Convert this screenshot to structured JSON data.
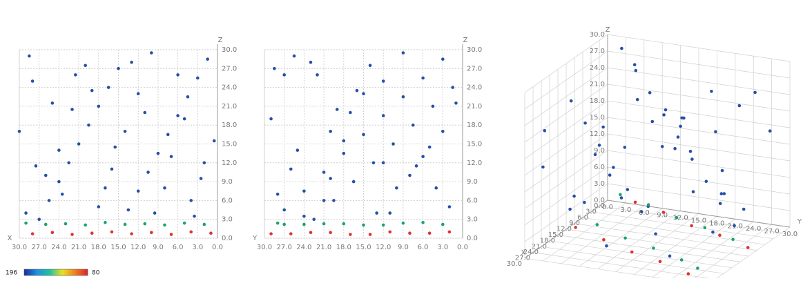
{
  "chart_data": {
    "type": "scatter3d",
    "axis_labels": {
      "x": "X",
      "y": "Y",
      "z": "Z"
    },
    "xlim": [
      0,
      30
    ],
    "ylim": [
      0,
      30
    ],
    "zlim": [
      0,
      30
    ],
    "xticks": [
      {
        "value": 0,
        "label": "0.0"
      },
      {
        "value": 3,
        "label": "3.0"
      },
      {
        "value": 6,
        "label": "6.0"
      },
      {
        "value": 9,
        "label": "9.0"
      },
      {
        "value": 12,
        "label": "12.0"
      },
      {
        "value": 15,
        "label": "15.0"
      },
      {
        "value": 18,
        "label": "18.0"
      },
      {
        "value": 21,
        "label": "21.0"
      },
      {
        "value": 24,
        "label": "24.0"
      },
      {
        "value": 27,
        "label": "27.0"
      },
      {
        "value": 30,
        "label": "30.0"
      }
    ],
    "yticks": [
      {
        "value": 0,
        "label": "0.0"
      },
      {
        "value": 3,
        "label": "3.0"
      },
      {
        "value": 6,
        "label": "6.0"
      },
      {
        "value": 9,
        "label": "9.0"
      },
      {
        "value": 12,
        "label": "12.0"
      },
      {
        "value": 15,
        "label": "15.0"
      },
      {
        "value": 18,
        "label": "18.0"
      },
      {
        "value": 21,
        "label": "21.0"
      },
      {
        "value": 24,
        "label": "24.0"
      },
      {
        "value": 27,
        "label": "27.0"
      },
      {
        "value": 30,
        "label": "30.0"
      }
    ],
    "zticks": [
      {
        "value": 0,
        "label": "0.0"
      },
      {
        "value": 3,
        "label": "3.0"
      },
      {
        "value": 6,
        "label": "6.0"
      },
      {
        "value": 9,
        "label": "9.0"
      },
      {
        "value": 12,
        "label": "12.0"
      },
      {
        "value": 15,
        "label": "15.0"
      },
      {
        "value": 18,
        "label": "18.0"
      },
      {
        "value": 21,
        "label": "21.0"
      },
      {
        "value": 24,
        "label": "24.0"
      },
      {
        "value": 27,
        "label": "27.0"
      },
      {
        "value": 30,
        "label": "30.0"
      }
    ],
    "grid": true,
    "series": [
      {
        "color": "#2450a8",
        "x": [
          1.5,
          3,
          4.5,
          6,
          7.5,
          9,
          10.5,
          12,
          13.5,
          15,
          16.5,
          18,
          19.5,
          21,
          22.5,
          24,
          25.5,
          27,
          28.5,
          30,
          2,
          4,
          6,
          8,
          10,
          12,
          14,
          16,
          18,
          20,
          22,
          24,
          26,
          28,
          0.5,
          3.5,
          5,
          7,
          9.5,
          11,
          13,
          15.5,
          17,
          19,
          21.5,
          23.5,
          25,
          27.5,
          29,
          2.5
        ],
        "y": [
          3,
          6,
          9,
          12,
          15,
          18,
          21,
          24,
          27,
          28.5,
          1.5,
          4.5,
          7.5,
          10.5,
          13.5,
          16.5,
          19.5,
          22.5,
          25.5,
          3,
          12,
          21,
          27,
          4,
          9,
          15,
          20,
          26,
          2,
          14,
          19,
          25,
          8,
          12,
          18,
          24,
          29,
          6,
          11,
          17,
          23,
          5,
          10,
          16,
          22,
          28,
          1,
          7,
          13,
          20
        ],
        "z": [
          28.5,
          25.5,
          22.5,
          19.5,
          16.5,
          13.5,
          10.5,
          7.5,
          4.5,
          27,
          24,
          21,
          18,
          15,
          12,
          9,
          6,
          3,
          29,
          17,
          12,
          6,
          26,
          8,
          29.5,
          23,
          17,
          11,
          5,
          27.5,
          20.5,
          14,
          10,
          25,
          15.5,
          3.5,
          19,
          13,
          4,
          20,
          28,
          14.5,
          8,
          23.5,
          26,
          7,
          21.5,
          11.5,
          4,
          9.5
        ]
      },
      {
        "color": "#1aa36a",
        "x": [
          2,
          5,
          8,
          11,
          14,
          17,
          20,
          23,
          26,
          29
        ],
        "y": [
          3,
          9,
          15,
          21,
          27,
          6,
          12,
          18,
          24,
          28
        ],
        "z": [
          2.2,
          2.4,
          2.1,
          2.3,
          2.2,
          2.5,
          2.1,
          2.3,
          2.2,
          2.4
        ]
      },
      {
        "color": "#e0322c",
        "x": [
          1,
          4,
          7,
          10,
          13,
          16,
          19,
          22,
          25,
          28
        ],
        "y": [
          5,
          11,
          17,
          23,
          29,
          2,
          8,
          14,
          20,
          26
        ],
        "z": [
          0.8,
          1,
          0.6,
          0.9,
          0.7,
          1,
          0.8,
          0.6,
          0.9,
          0.7
        ]
      }
    ],
    "colorbar": {
      "labels": [
        196,
        80
      ],
      "colors": [
        "#1a2a9c",
        "#1e90e0",
        "#20c0a0",
        "#e8e020",
        "#f08020",
        "#e0202a"
      ]
    }
  }
}
